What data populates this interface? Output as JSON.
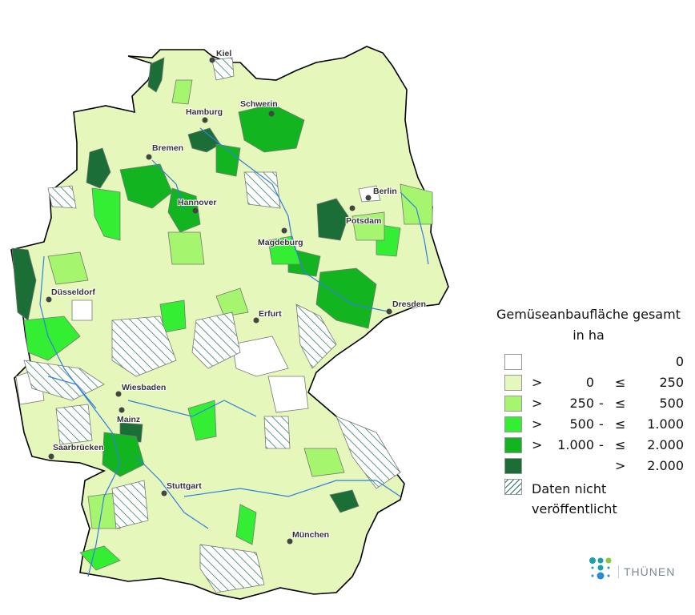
{
  "map": {
    "cities": [
      "Kiel",
      "Hamburg",
      "Schwerin",
      "Bremen",
      "Berlin",
      "Potsdam",
      "Hannover",
      "Magdeburg",
      "Düsseldorf",
      "Dresden",
      "Erfurt",
      "Wiesbaden",
      "Mainz",
      "Saarbrücken",
      "Stuttgart",
      "München"
    ],
    "fill_colors": {
      "zero": "#ffffff",
      "c1": "#e5f7bb",
      "c2": "#a5f56f",
      "c3": "#33ee33",
      "c4": "#12b520",
      "c5": "#1b6e36",
      "hatch": "#2a7a55",
      "rivers": "#2f7fe0",
      "borders": "#777777"
    }
  },
  "legend": {
    "title_line1": "Gemüseanbaufläche gesamt",
    "title_line2": "in ha",
    "classes": [
      {
        "gt": "",
        "from": "",
        "dash": "",
        "le": "",
        "to": "0",
        "color": "#ffffff"
      },
      {
        "gt": ">",
        "from": "0",
        "dash": "",
        "le": "≤",
        "to": "250",
        "color": "#e5f7bb"
      },
      {
        "gt": ">",
        "from": "250",
        "dash": "-",
        "le": "≤",
        "to": "500",
        "color": "#a5f56f"
      },
      {
        "gt": ">",
        "from": "500",
        "dash": "-",
        "le": "≤",
        "to": "1.000",
        "color": "#33ee33"
      },
      {
        "gt": ">",
        "from": "1.000",
        "dash": "-",
        "le": "≤",
        "to": "2.000",
        "color": "#12b520"
      },
      {
        "gt": "",
        "from": "",
        "dash": "",
        "le": ">",
        "to": "2.000",
        "color": "#1b6e36"
      }
    ],
    "no_data_line1": "Daten nicht",
    "no_data_line2": "veröffentlicht"
  },
  "logo": {
    "text": "THÜNEN"
  }
}
